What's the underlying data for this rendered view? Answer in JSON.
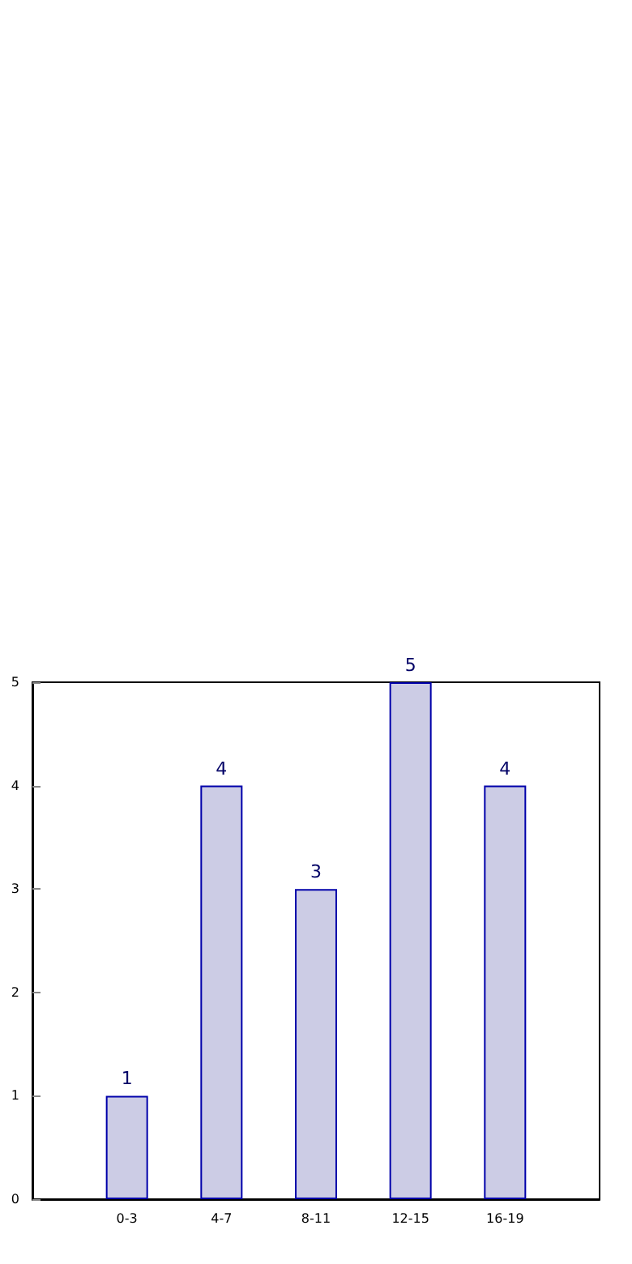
{
  "chart_data": {
    "type": "bar",
    "categories": [
      "0-3",
      "4-7",
      "8-11",
      "12-15",
      "16-19"
    ],
    "values": [
      1,
      4,
      3,
      5,
      4
    ],
    "color": "#ccccE5",
    "ylim": [
      0,
      5
    ],
    "yticks": [
      0,
      1,
      2,
      3,
      4,
      5
    ],
    "grid": false,
    "data_labels": true
  }
}
